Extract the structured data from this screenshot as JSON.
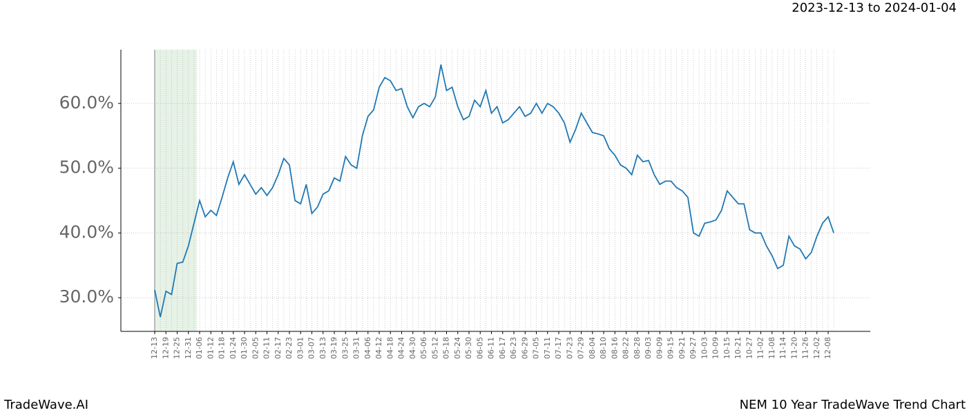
{
  "header": "2023-12-13 to 2024-01-04",
  "footer_left": "TradeWave.AI",
  "footer_right": "NEM 10 Year TradeWave Trend Chart",
  "chart_data": {
    "type": "line",
    "categories": [
      "12-13",
      null,
      "12-19",
      null,
      "12-25",
      null,
      "12-31",
      null,
      "01-06",
      null,
      "01-12",
      null,
      "01-18",
      null,
      "01-24",
      null,
      "01-30",
      null,
      "02-05",
      null,
      "02-11",
      null,
      "02-17",
      null,
      "02-23",
      null,
      "03-01",
      null,
      "03-07",
      null,
      "03-13",
      null,
      "03-19",
      null,
      "03-25",
      null,
      "03-31",
      null,
      "04-06",
      null,
      "04-12",
      null,
      "04-18",
      null,
      "04-24",
      null,
      "04-30",
      null,
      "05-06",
      null,
      "05-12",
      null,
      "05-18",
      null,
      "05-24",
      null,
      "05-30",
      null,
      "06-05",
      null,
      "06-11",
      null,
      "06-17",
      null,
      "06-23",
      null,
      "06-29",
      null,
      "07-05",
      null,
      "07-11",
      null,
      "07-17",
      null,
      "07-23",
      null,
      "07-29",
      null,
      "08-04",
      null,
      "08-10",
      null,
      "08-16",
      null,
      "08-22",
      null,
      "08-28",
      null,
      "09-03",
      null,
      "09-09",
      null,
      "09-15",
      null,
      "09-21",
      null,
      "09-27",
      null,
      "10-03",
      null,
      "10-09",
      null,
      "10-15",
      null,
      "10-21",
      null,
      "10-27",
      null,
      "11-02",
      null,
      "11-08",
      null,
      "11-14",
      null,
      "11-20",
      null,
      "11-26",
      null,
      "12-02",
      null,
      "12-08",
      null
    ],
    "series": [
      {
        "color": "#1f77b4",
        "values": [
          31.2,
          27,
          31,
          30.5,
          35.3,
          35.5,
          38,
          41.5,
          45,
          42.5,
          43.5,
          42.7,
          45.5,
          48.5,
          51,
          47.5,
          49,
          47.5,
          46,
          47,
          45.8,
          47,
          49,
          51.5,
          50.5,
          45,
          44.5,
          47.5,
          43,
          44,
          46,
          46.5,
          48.5,
          48,
          51.8,
          50.5,
          50,
          55,
          58,
          59,
          62.5,
          64,
          63.5,
          62,
          62.3,
          59.5,
          57.8,
          59.5,
          60,
          59.5,
          61,
          66,
          62,
          62.5,
          59.5,
          57.5,
          58,
          60.5,
          59.5,
          62,
          58.5,
          59.5,
          57,
          57.5,
          58.5,
          59.5,
          58,
          58.5,
          60,
          58.5,
          60,
          59.5,
          58.5,
          57,
          54,
          56,
          58.5,
          57,
          55.5,
          55.3,
          55,
          53,
          52,
          50.5,
          50,
          49,
          52,
          51,
          51.2,
          49,
          47.5,
          48,
          48,
          47,
          46.5,
          45.5,
          40,
          39.5,
          41.5,
          41.7,
          42,
          43.5,
          46.5,
          45.5,
          44.5,
          44.5,
          40.5,
          40,
          40,
          38,
          36.5,
          34.5,
          35,
          39.5,
          38,
          37.5,
          36,
          37,
          39.5,
          41.5,
          42.5,
          40
        ]
      }
    ],
    "ylim": [
      24.8,
      68.3
    ],
    "yticks": [
      {
        "value": 30,
        "label": "30.0%"
      },
      {
        "value": 40,
        "label": "40.0%"
      },
      {
        "value": 50,
        "label": "50.0%"
      },
      {
        "value": 60,
        "label": "60.0%"
      }
    ],
    "grid": true,
    "highlight": {
      "from": "12-13",
      "to": "01-06",
      "color": "#e6f2e6"
    }
  }
}
